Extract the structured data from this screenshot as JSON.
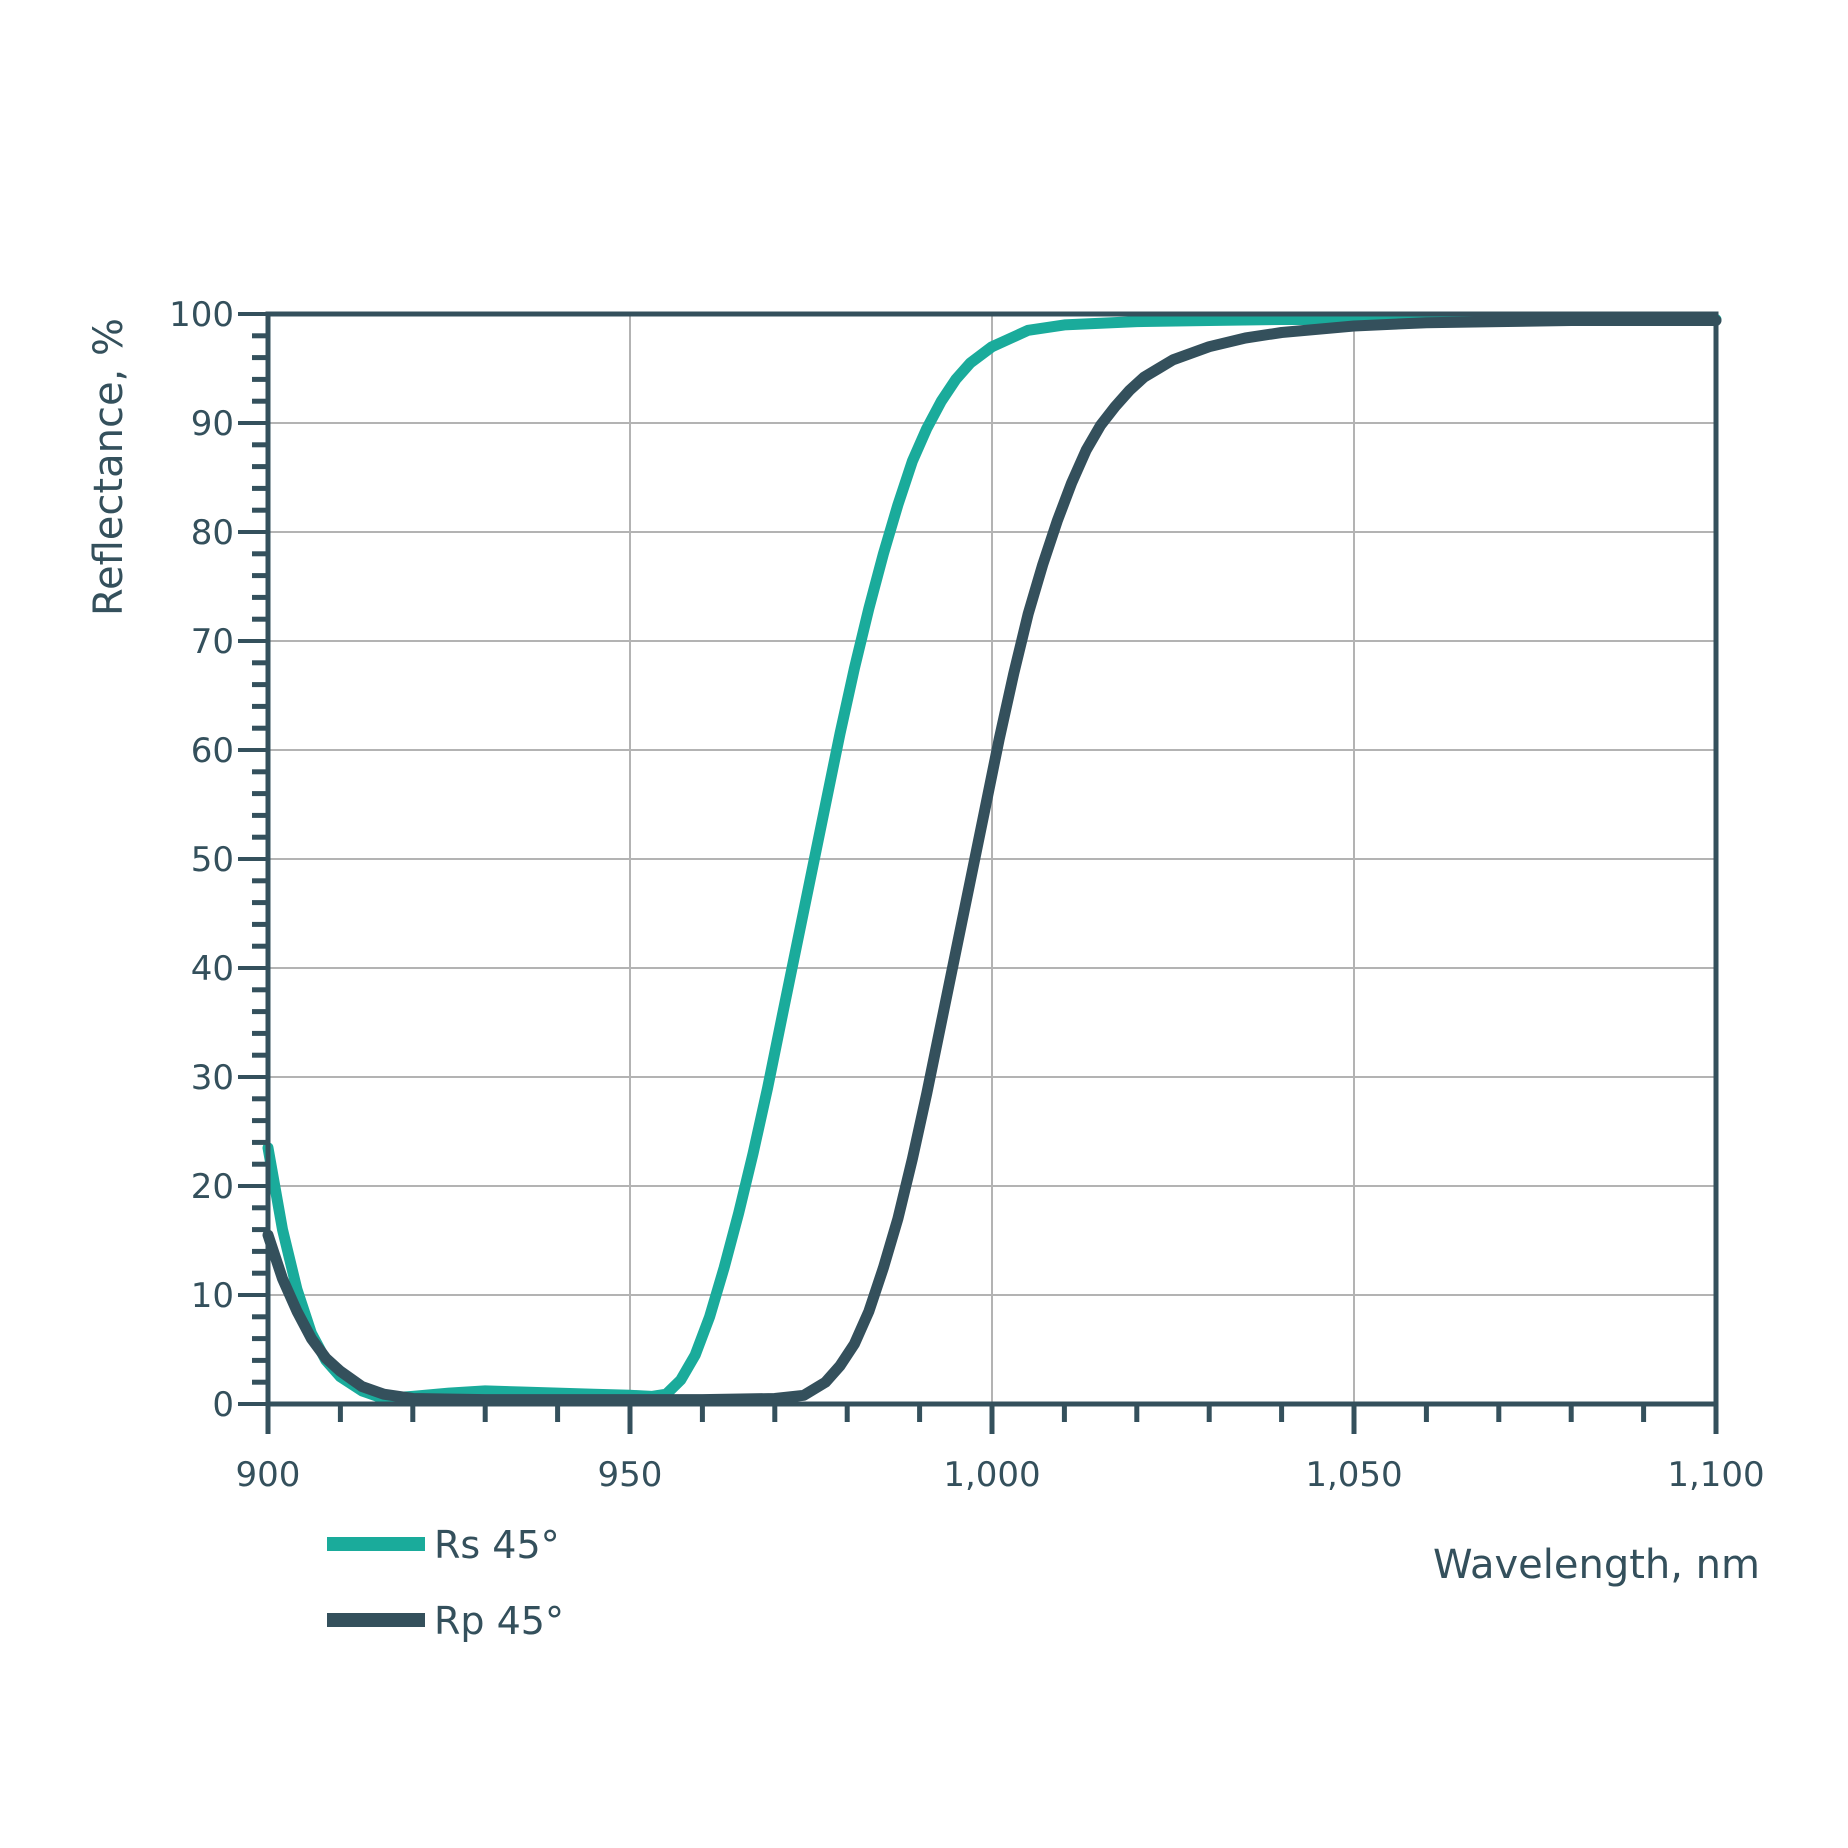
{
  "chart_data": {
    "type": "line",
    "xlabel": "Wavelength, nm",
    "ylabel": "Reflectance, %",
    "xlim": [
      900,
      1100
    ],
    "ylim": [
      0,
      100
    ],
    "x_ticks": [
      900,
      950,
      1000,
      1050,
      1100
    ],
    "x_tick_labels": [
      "900",
      "950",
      "1,000",
      "1,050",
      "1,100"
    ],
    "y_ticks": [
      0,
      10,
      20,
      30,
      40,
      50,
      60,
      70,
      80,
      90,
      100
    ],
    "y_tick_labels": [
      "0",
      "10",
      "20",
      "30",
      "40",
      "50",
      "60",
      "70",
      "80",
      "90",
      "100"
    ],
    "grid": true,
    "legend_position": "bottom-left",
    "colors": {
      "axis": "#34505c",
      "grid": "#b3b3b3"
    },
    "series": [
      {
        "name": "Rs 45°",
        "color": "#1aab9b",
        "x": [
          900,
          902,
          904,
          906,
          908,
          910,
          913,
          916,
          920,
          925,
          930,
          935,
          940,
          945,
          950,
          953,
          955,
          957,
          959,
          961,
          963,
          965,
          967,
          969,
          971,
          973,
          975,
          977,
          979,
          981,
          983,
          985,
          987,
          989,
          991,
          993,
          995,
          997,
          1000,
          1005,
          1010,
          1020,
          1030,
          1040,
          1050,
          1060,
          1080,
          1100
        ],
        "y": [
          23.5,
          16,
          10.5,
          6.5,
          4,
          2.5,
          1.2,
          0.5,
          0.7,
          1.0,
          1.2,
          1.1,
          1.0,
          0.9,
          0.8,
          0.7,
          0.9,
          2.2,
          4.5,
          8.0,
          12.5,
          17.5,
          23.0,
          29.0,
          35.5,
          42.0,
          48.5,
          55.0,
          61.5,
          67.5,
          73.0,
          78.0,
          82.5,
          86.5,
          89.5,
          92.0,
          94.0,
          95.5,
          97.0,
          98.5,
          99.0,
          99.3,
          99.4,
          99.5,
          99.5,
          99.5,
          99.5,
          99.5
        ]
      },
      {
        "name": "Rp 45°",
        "color": "#34505c",
        "x": [
          900,
          902,
          904,
          906,
          908,
          910,
          913,
          916,
          920,
          930,
          940,
          950,
          960,
          970,
          974,
          977,
          979,
          981,
          983,
          985,
          987,
          989,
          991,
          993,
          995,
          997,
          999,
          1001,
          1003,
          1005,
          1007,
          1009,
          1011,
          1013,
          1015,
          1017,
          1019,
          1021,
          1023,
          1025,
          1030,
          1035,
          1040,
          1050,
          1060,
          1070,
          1080,
          1100
        ],
        "y": [
          15.5,
          11.5,
          8.5,
          6.0,
          4.2,
          3.0,
          1.6,
          0.9,
          0.5,
          0.4,
          0.4,
          0.4,
          0.4,
          0.5,
          0.8,
          2.0,
          3.5,
          5.5,
          8.5,
          12.5,
          17.0,
          22.5,
          28.5,
          35.0,
          41.5,
          48.0,
          54.5,
          61.0,
          67.0,
          72.5,
          77.0,
          81.0,
          84.5,
          87.5,
          89.8,
          91.5,
          93.0,
          94.2,
          95.0,
          95.8,
          97.0,
          97.8,
          98.3,
          98.9,
          99.2,
          99.3,
          99.4,
          99.4
        ]
      }
    ]
  }
}
